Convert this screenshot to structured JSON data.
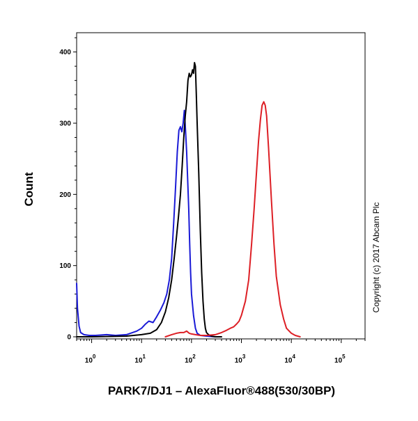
{
  "chart_data": {
    "type": "line",
    "title": "",
    "xlabel": "PARK7/DJ1 – AlexaFluor®488(530/30BP)",
    "ylabel": "Count",
    "x_scale": "log",
    "xlim": [
      0.5,
      300000
    ],
    "ylim": [
      0,
      430
    ],
    "x_ticks": [
      {
        "value": 1,
        "base": "10",
        "exp": "0"
      },
      {
        "value": 10,
        "base": "10",
        "exp": "1"
      },
      {
        "value": 100,
        "base": "10",
        "exp": "2"
      },
      {
        "value": 1000,
        "base": "10",
        "exp": "3"
      },
      {
        "value": 10000,
        "base": "10",
        "exp": "4"
      },
      {
        "value": 100000,
        "base": "10",
        "exp": "5"
      }
    ],
    "y_ticks": [
      0,
      100,
      200,
      300,
      400
    ],
    "grid": false,
    "series": [
      {
        "color": "#1a1ad6",
        "x": [
          0.5,
          0.52,
          0.56,
          0.6,
          0.7,
          0.9,
          1.2,
          2,
          3,
          5,
          8,
          10,
          12,
          14,
          17,
          20,
          24,
          28,
          32,
          36,
          40,
          44,
          48,
          52,
          56,
          60,
          64,
          68,
          72,
          76,
          80,
          84,
          88,
          92,
          96,
          100,
          110,
          120,
          130,
          150,
          200,
          300
        ],
        "y": [
          75,
          40,
          15,
          6,
          3,
          2,
          2,
          3,
          2,
          3,
          8,
          12,
          18,
          22,
          20,
          28,
          38,
          48,
          60,
          80,
          110,
          160,
          210,
          260,
          290,
          295,
          288,
          300,
          318,
          290,
          260,
          220,
          180,
          130,
          90,
          60,
          30,
          12,
          5,
          2,
          1,
          0
        ]
      },
      {
        "color": "#000000",
        "x": [
          0.5,
          1,
          5,
          10,
          15,
          20,
          25,
          30,
          35,
          40,
          45,
          50,
          55,
          60,
          65,
          70,
          75,
          80,
          85,
          90,
          95,
          100,
          105,
          110,
          115,
          120,
          125,
          130,
          140,
          150,
          160,
          170,
          180,
          190,
          200,
          220,
          250,
          300,
          400
        ],
        "y": [
          0,
          0,
          1,
          3,
          5,
          10,
          20,
          35,
          55,
          80,
          110,
          140,
          170,
          200,
          240,
          280,
          310,
          330,
          360,
          370,
          365,
          368,
          375,
          370,
          385,
          380,
          340,
          300,
          230,
          150,
          90,
          50,
          25,
          12,
          6,
          3,
          1,
          0,
          0
        ]
      },
      {
        "color": "#dd1f25",
        "x": [
          30,
          40,
          50,
          60,
          70,
          80,
          90,
          100,
          120,
          150,
          200,
          300,
          400,
          500,
          600,
          700,
          800,
          900,
          1000,
          1200,
          1400,
          1600,
          1800,
          2000,
          2200,
          2400,
          2600,
          2800,
          3000,
          3200,
          3500,
          4000,
          4500,
          5000,
          6000,
          7000,
          8000,
          10000,
          12000,
          15000
        ],
        "y": [
          0,
          3,
          5,
          6,
          6,
          8,
          5,
          4,
          3,
          2,
          2,
          3,
          6,
          9,
          12,
          14,
          18,
          22,
          30,
          50,
          80,
          130,
          180,
          230,
          275,
          305,
          325,
          330,
          325,
          310,
          265,
          190,
          130,
          85,
          45,
          25,
          12,
          5,
          2,
          0
        ]
      }
    ]
  },
  "copyright": "Copyright (c) 2017 Abcam Plc"
}
